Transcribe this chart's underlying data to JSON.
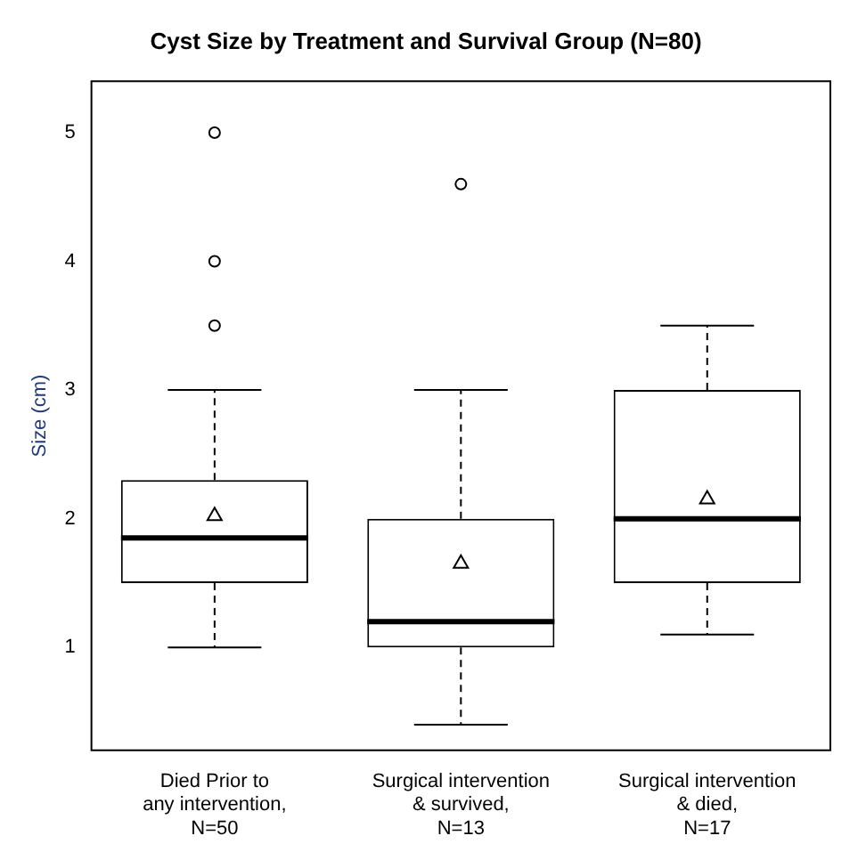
{
  "chart_data": {
    "type": "box",
    "title": "Cyst Size by Treatment and Survival Group (N=80)",
    "ylabel": "Size (cm)",
    "categories": [
      "Died Prior to\nany intervention,\nN=50",
      "Surgical intervention\n& survived,\nN=13",
      "Surgical intervention\n& died,\nN=17"
    ],
    "boxes": [
      {
        "low": 1.0,
        "q1": 1.5,
        "median": 1.85,
        "q3": 2.3,
        "high": 3.0,
        "mean": 2.03,
        "outliers": [
          3.5,
          4.0,
          5.0
        ]
      },
      {
        "low": 0.4,
        "q1": 1.0,
        "median": 1.2,
        "q3": 2.0,
        "high": 3.0,
        "mean": 1.66,
        "outliers": [
          4.6
        ]
      },
      {
        "low": 1.1,
        "q1": 1.5,
        "median": 2.0,
        "q3": 3.0,
        "high": 3.5,
        "mean": 2.16
      }
    ],
    "color": "#000000",
    "ylim": [
      0.2,
      5.4
    ],
    "yticks": [
      1,
      2,
      3,
      4,
      5
    ],
    "marker": "triangle"
  }
}
